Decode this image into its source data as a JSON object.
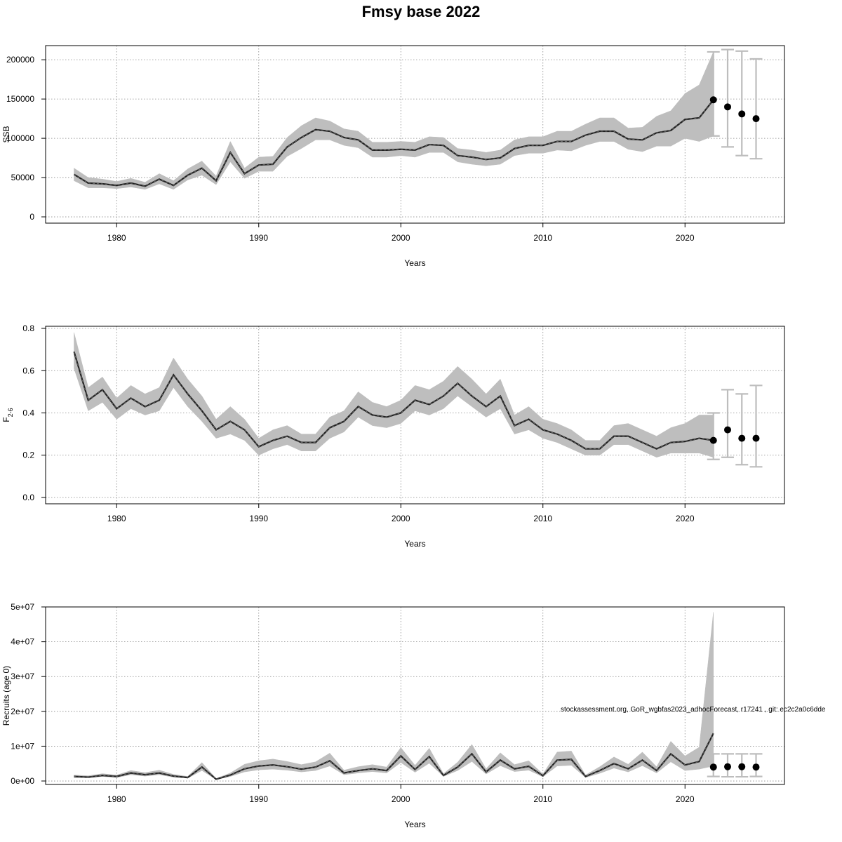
{
  "page": {
    "title": "Fmsy base 2022"
  },
  "footnote": "stockassessment.org, GoR_wgbfas2023_adhocForecast, r17241 , git: ec2c2a0c6dde",
  "chart_data": [
    {
      "type": "line",
      "name": "ssb",
      "xlabel": "Years",
      "ylabel": "SSB",
      "xlim": [
        1975,
        2027
      ],
      "ylim": [
        -8000,
        218000
      ],
      "xticks": [
        1980,
        1990,
        2000,
        2010,
        2020
      ],
      "yticks": [
        0,
        50000,
        100000,
        150000,
        200000
      ],
      "ytick_labels": [
        "0",
        "50000",
        "100000",
        "150000",
        "200000"
      ],
      "grid": true,
      "x": [
        1977,
        1978,
        1979,
        1980,
        1981,
        1982,
        1983,
        1984,
        1985,
        1986,
        1987,
        1988,
        1989,
        1990,
        1991,
        1992,
        1993,
        1994,
        1995,
        1996,
        1997,
        1998,
        1999,
        2000,
        2001,
        2002,
        2003,
        2004,
        2005,
        2006,
        2007,
        2008,
        2009,
        2010,
        2011,
        2012,
        2013,
        2014,
        2015,
        2016,
        2017,
        2018,
        2019,
        2020,
        2021,
        2022
      ],
      "estimate": [
        54000,
        43000,
        42000,
        40000,
        43000,
        39000,
        48000,
        40000,
        53000,
        62000,
        46000,
        82000,
        55000,
        66000,
        67000,
        89000,
        101000,
        111000,
        109000,
        101000,
        98000,
        85000,
        85000,
        86000,
        85000,
        92000,
        91000,
        78000,
        76000,
        73000,
        75000,
        87000,
        91000,
        91000,
        96000,
        96000,
        104000,
        109000,
        109000,
        99000,
        98000,
        107000,
        110000,
        124000,
        126000,
        149000
      ],
      "lower": [
        46000,
        37000,
        37000,
        36000,
        38000,
        35000,
        42000,
        35000,
        47000,
        53000,
        41000,
        70000,
        49000,
        58000,
        58000,
        77000,
        87000,
        98000,
        98000,
        91000,
        88000,
        76000,
        76000,
        78000,
        76000,
        82000,
        82000,
        70000,
        67000,
        65000,
        67000,
        78000,
        81000,
        81000,
        85000,
        84000,
        91000,
        96000,
        96000,
        86000,
        83000,
        90000,
        90000,
        100000,
        96000,
        103000
      ],
      "upper": [
        62000,
        50000,
        48000,
        45000,
        49000,
        44000,
        55000,
        46000,
        61000,
        71000,
        52000,
        96000,
        62000,
        76000,
        77000,
        101000,
        116000,
        126000,
        122000,
        112000,
        109000,
        95000,
        95000,
        96000,
        95000,
        102000,
        101000,
        87000,
        85000,
        82000,
        85000,
        98000,
        102000,
        102000,
        109000,
        109000,
        118000,
        126000,
        126000,
        113000,
        114000,
        128000,
        135000,
        157000,
        168000,
        210000
      ],
      "forecast": {
        "x": [
          2022,
          2023,
          2024,
          2025
        ],
        "median": [
          149000,
          140000,
          131000,
          125000
        ],
        "lower": [
          103000,
          89000,
          78000,
          74000
        ],
        "upper": [
          210000,
          213000,
          211000,
          201000
        ]
      }
    },
    {
      "type": "line",
      "name": "fbar",
      "xlabel": "Years",
      "ylabel": "F",
      "ylabel_sub": "2-6",
      "xlim": [
        1975,
        2027
      ],
      "ylim": [
        -0.03,
        0.81
      ],
      "xticks": [
        1980,
        1990,
        2000,
        2010,
        2020
      ],
      "yticks": [
        0.0,
        0.2,
        0.4,
        0.6,
        0.8
      ],
      "ytick_labels": [
        "0.0",
        "0.2",
        "0.4",
        "0.6",
        "0.8"
      ],
      "grid": true,
      "x": [
        1977,
        1978,
        1979,
        1980,
        1981,
        1982,
        1983,
        1984,
        1985,
        1986,
        1987,
        1988,
        1989,
        1990,
        1991,
        1992,
        1993,
        1994,
        1995,
        1996,
        1997,
        1998,
        1999,
        2000,
        2001,
        2002,
        2003,
        2004,
        2005,
        2006,
        2007,
        2008,
        2009,
        2010,
        2011,
        2012,
        2013,
        2014,
        2015,
        2016,
        2017,
        2018,
        2019,
        2020,
        2021,
        2022
      ],
      "estimate": [
        0.69,
        0.46,
        0.51,
        0.42,
        0.47,
        0.43,
        0.46,
        0.58,
        0.49,
        0.41,
        0.32,
        0.36,
        0.32,
        0.24,
        0.27,
        0.29,
        0.26,
        0.26,
        0.33,
        0.36,
        0.43,
        0.39,
        0.38,
        0.4,
        0.46,
        0.44,
        0.48,
        0.54,
        0.48,
        0.43,
        0.48,
        0.34,
        0.37,
        0.32,
        0.3,
        0.27,
        0.23,
        0.23,
        0.29,
        0.29,
        0.26,
        0.23,
        0.26,
        0.265,
        0.28,
        0.27
      ],
      "lower": [
        0.61,
        0.41,
        0.45,
        0.37,
        0.42,
        0.39,
        0.41,
        0.52,
        0.43,
        0.36,
        0.28,
        0.3,
        0.27,
        0.2,
        0.23,
        0.25,
        0.22,
        0.22,
        0.28,
        0.31,
        0.38,
        0.34,
        0.33,
        0.35,
        0.41,
        0.39,
        0.42,
        0.48,
        0.43,
        0.38,
        0.42,
        0.3,
        0.32,
        0.28,
        0.26,
        0.23,
        0.2,
        0.2,
        0.25,
        0.25,
        0.22,
        0.19,
        0.21,
        0.21,
        0.21,
        0.19
      ],
      "upper": [
        0.78,
        0.52,
        0.57,
        0.47,
        0.53,
        0.49,
        0.52,
        0.66,
        0.56,
        0.48,
        0.37,
        0.43,
        0.37,
        0.28,
        0.32,
        0.34,
        0.3,
        0.3,
        0.38,
        0.41,
        0.5,
        0.45,
        0.43,
        0.46,
        0.53,
        0.51,
        0.55,
        0.62,
        0.56,
        0.49,
        0.56,
        0.39,
        0.43,
        0.37,
        0.35,
        0.32,
        0.27,
        0.27,
        0.34,
        0.35,
        0.32,
        0.29,
        0.33,
        0.35,
        0.39,
        0.39
      ],
      "forecast": {
        "x": [
          2022,
          2023,
          2024,
          2025
        ],
        "median": [
          0.27,
          0.32,
          0.28,
          0.28
        ],
        "lower": [
          0.18,
          0.19,
          0.155,
          0.145
        ],
        "upper": [
          0.4,
          0.51,
          0.49,
          0.53
        ]
      }
    },
    {
      "type": "line",
      "name": "recruits",
      "xlabel": "Years",
      "ylabel": "Recruits (age 0)",
      "xlim": [
        1975,
        2027
      ],
      "ylim": [
        -1000000,
        50000000
      ],
      "xticks": [
        1980,
        1990,
        2000,
        2010,
        2020
      ],
      "yticks": [
        0,
        10000000,
        20000000,
        30000000,
        40000000,
        50000000
      ],
      "ytick_labels": [
        "0e+00",
        "1e+07",
        "2e+07",
        "3e+07",
        "4e+07",
        "5e+07"
      ],
      "grid": true,
      "x": [
        1977,
        1978,
        1979,
        1980,
        1981,
        1982,
        1983,
        1984,
        1985,
        1986,
        1987,
        1988,
        1989,
        1990,
        1991,
        1992,
        1993,
        1994,
        1995,
        1996,
        1997,
        1998,
        1999,
        2000,
        2001,
        2002,
        2003,
        2004,
        2005,
        2006,
        2007,
        2008,
        2009,
        2010,
        2011,
        2012,
        2013,
        2014,
        2015,
        2016,
        2017,
        2018,
        2019,
        2020,
        2021,
        2022
      ],
      "estimate": [
        1300000,
        1100000,
        1600000,
        1300000,
        2300000,
        1800000,
        2300000,
        1400000,
        1000000,
        4000000,
        500000,
        1700000,
        3500000,
        4300000,
        4600000,
        4100000,
        3400000,
        4000000,
        5800000,
        2300000,
        3000000,
        3500000,
        3000000,
        7200000,
        3300000,
        7000000,
        1600000,
        4000000,
        7800000,
        2600000,
        6000000,
        3500000,
        4200000,
        1500000,
        6000000,
        6200000,
        1300000,
        3000000,
        5000000,
        3500000,
        6000000,
        3000000,
        7800000,
        4600000,
        5600000,
        13700000
      ],
      "lower": [
        1000000,
        900000,
        1300000,
        1000000,
        1800000,
        1400000,
        1800000,
        1100000,
        800000,
        3000000,
        400000,
        1300000,
        2600000,
        3200000,
        3400000,
        3100000,
        2600000,
        3000000,
        4300000,
        1800000,
        2300000,
        2700000,
        2300000,
        5300000,
        2500000,
        5100000,
        1300000,
        3000000,
        5600000,
        2000000,
        4400000,
        2700000,
        3100000,
        1200000,
        4300000,
        4500000,
        1000000,
        2200000,
        3700000,
        2600000,
        4400000,
        2300000,
        5500000,
        3000000,
        3400000,
        4300000
      ],
      "upper": [
        1700000,
        1500000,
        2100000,
        1700000,
        3000000,
        2400000,
        3100000,
        1900000,
        1300000,
        5300000,
        700000,
        2300000,
        4800000,
        5800000,
        6300000,
        5600000,
        4700000,
        5500000,
        8000000,
        3100000,
        4100000,
        4700000,
        4000000,
        9600000,
        4500000,
        9400000,
        2100000,
        5400000,
        10500000,
        3500000,
        8100000,
        4700000,
        5800000,
        2000000,
        8300000,
        8600000,
        1700000,
        4100000,
        6900000,
        4800000,
        8300000,
        4100000,
        11400000,
        7200000,
        9700000,
        48500000
      ],
      "forecast": {
        "x": [
          2022,
          2023,
          2024,
          2025
        ],
        "median": [
          4000000,
          4100000,
          4100000,
          4000000
        ],
        "lower": [
          1300000,
          1200000,
          1200000,
          1300000
        ],
        "upper": [
          7800000,
          7800000,
          7800000,
          7800000
        ]
      }
    }
  ]
}
